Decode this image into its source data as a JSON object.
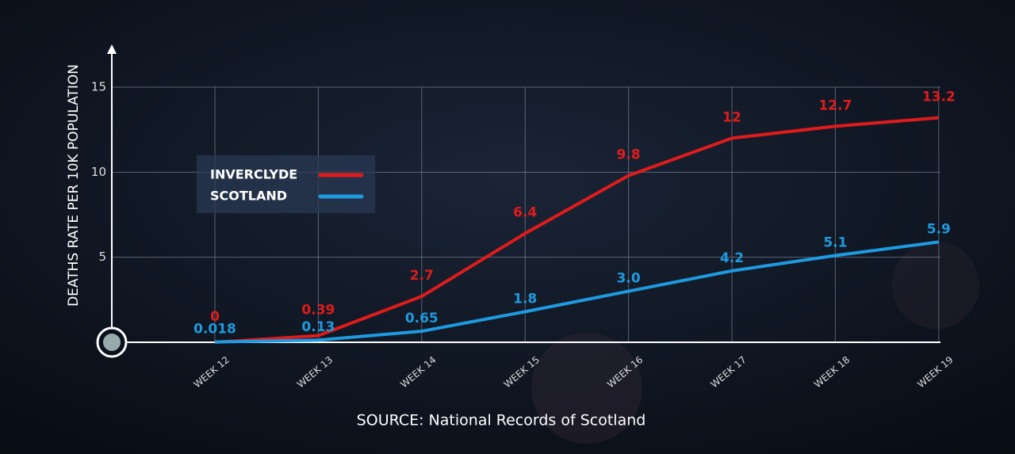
{
  "chart_data": {
    "type": "line",
    "y_label": "DEATHS RATE PER 10K POPULATION",
    "source": "SOURCE: National Records of Scotland",
    "categories": [
      "WEEK 12",
      "WEEK 13",
      "WEEK 14",
      "WEEK 15",
      "WEEK 16",
      "WEEK 17",
      "WEEK 18",
      "WEEK 19"
    ],
    "series": [
      {
        "name": "INVERCLYDE",
        "color": "#e01b1b",
        "values": [
          0,
          0.39,
          2.7,
          6.4,
          9.8,
          12,
          12.7,
          13.2
        ]
      },
      {
        "name": "SCOTLAND",
        "color": "#1e9be0",
        "values": [
          0.018,
          0.13,
          0.65,
          1.8,
          3,
          4.2,
          5.1,
          5.9
        ],
        "value_labels": [
          "0.018",
          "0.13",
          "0.65",
          "1.8",
          "3.0",
          "4.2",
          "5.1",
          "5.9"
        ]
      }
    ],
    "ylim": [
      0,
      15
    ],
    "yticks": [
      5,
      10,
      15
    ],
    "grid": true
  }
}
